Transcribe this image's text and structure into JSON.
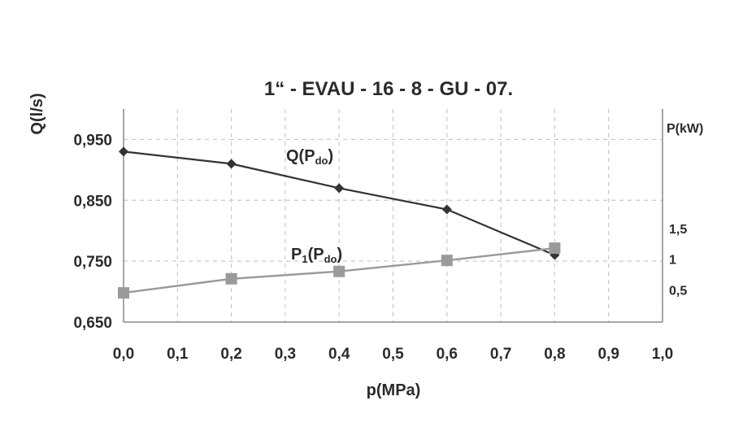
{
  "chart_data": {
    "type": "line",
    "title": "1“ - EVAU - 16 - 8 - GU - 07.",
    "xlabel": "p(MPa)",
    "ylabel": "Q(l/s)",
    "y2label": "P(kW)",
    "x_ticks": [
      "0,0",
      "0,1",
      "0,2",
      "0,3",
      "0,4",
      "0,5",
      "0,6",
      "0,7",
      "0,8",
      "0,9",
      "1,0"
    ],
    "y_ticks": [
      "0,650",
      "0,750",
      "0,850",
      "0,950"
    ],
    "y2_ticks": [
      "0,5",
      "1",
      "1,5"
    ],
    "xlim": [
      0,
      1.0
    ],
    "ylim": [
      0.65,
      1.0
    ],
    "y2_ticks_values": [
      0.5,
      1,
      1.5
    ],
    "grid": true,
    "series": [
      {
        "name": "Q(Pdo)",
        "label_main": "Q(P",
        "label_sub": "do",
        "label_end": ")",
        "axis": "left",
        "marker": "diamond",
        "color": "#333333",
        "x": [
          0.0,
          0.2,
          0.4,
          0.6,
          0.8
        ],
        "y": [
          0.93,
          0.91,
          0.87,
          0.835,
          0.76
        ]
      },
      {
        "name": "P1(Pdo)",
        "label_main": "P",
        "label_sub1": "1",
        "label_mid": "(P",
        "label_sub": "do",
        "label_end": ")",
        "axis": "right",
        "marker": "square",
        "color": "#9a9a9a",
        "x": [
          0.0,
          0.2,
          0.4,
          0.6,
          0.8
        ],
        "y": [
          0.45,
          0.68,
          0.8,
          0.98,
          1.18
        ]
      }
    ]
  }
}
